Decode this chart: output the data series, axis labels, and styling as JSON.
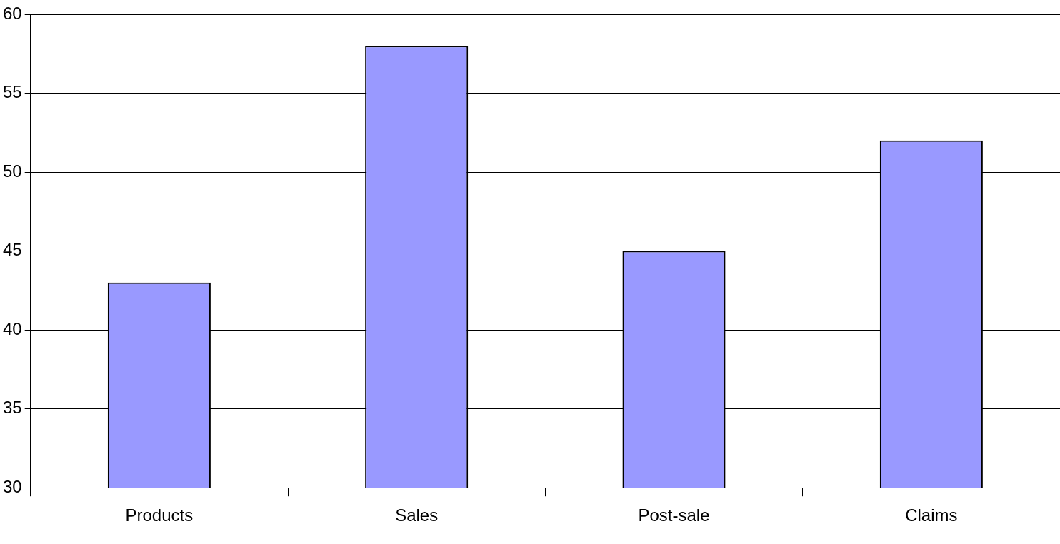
{
  "chart_data": {
    "type": "bar",
    "categories": [
      "Products",
      "Sales",
      "Post-sale",
      "Claims"
    ],
    "values": [
      43,
      58,
      45,
      52
    ],
    "color": "#9999ff",
    "ylim": [
      30,
      60
    ],
    "yticks": [
      30,
      35,
      40,
      45,
      50,
      55,
      60
    ],
    "grid": "y"
  }
}
